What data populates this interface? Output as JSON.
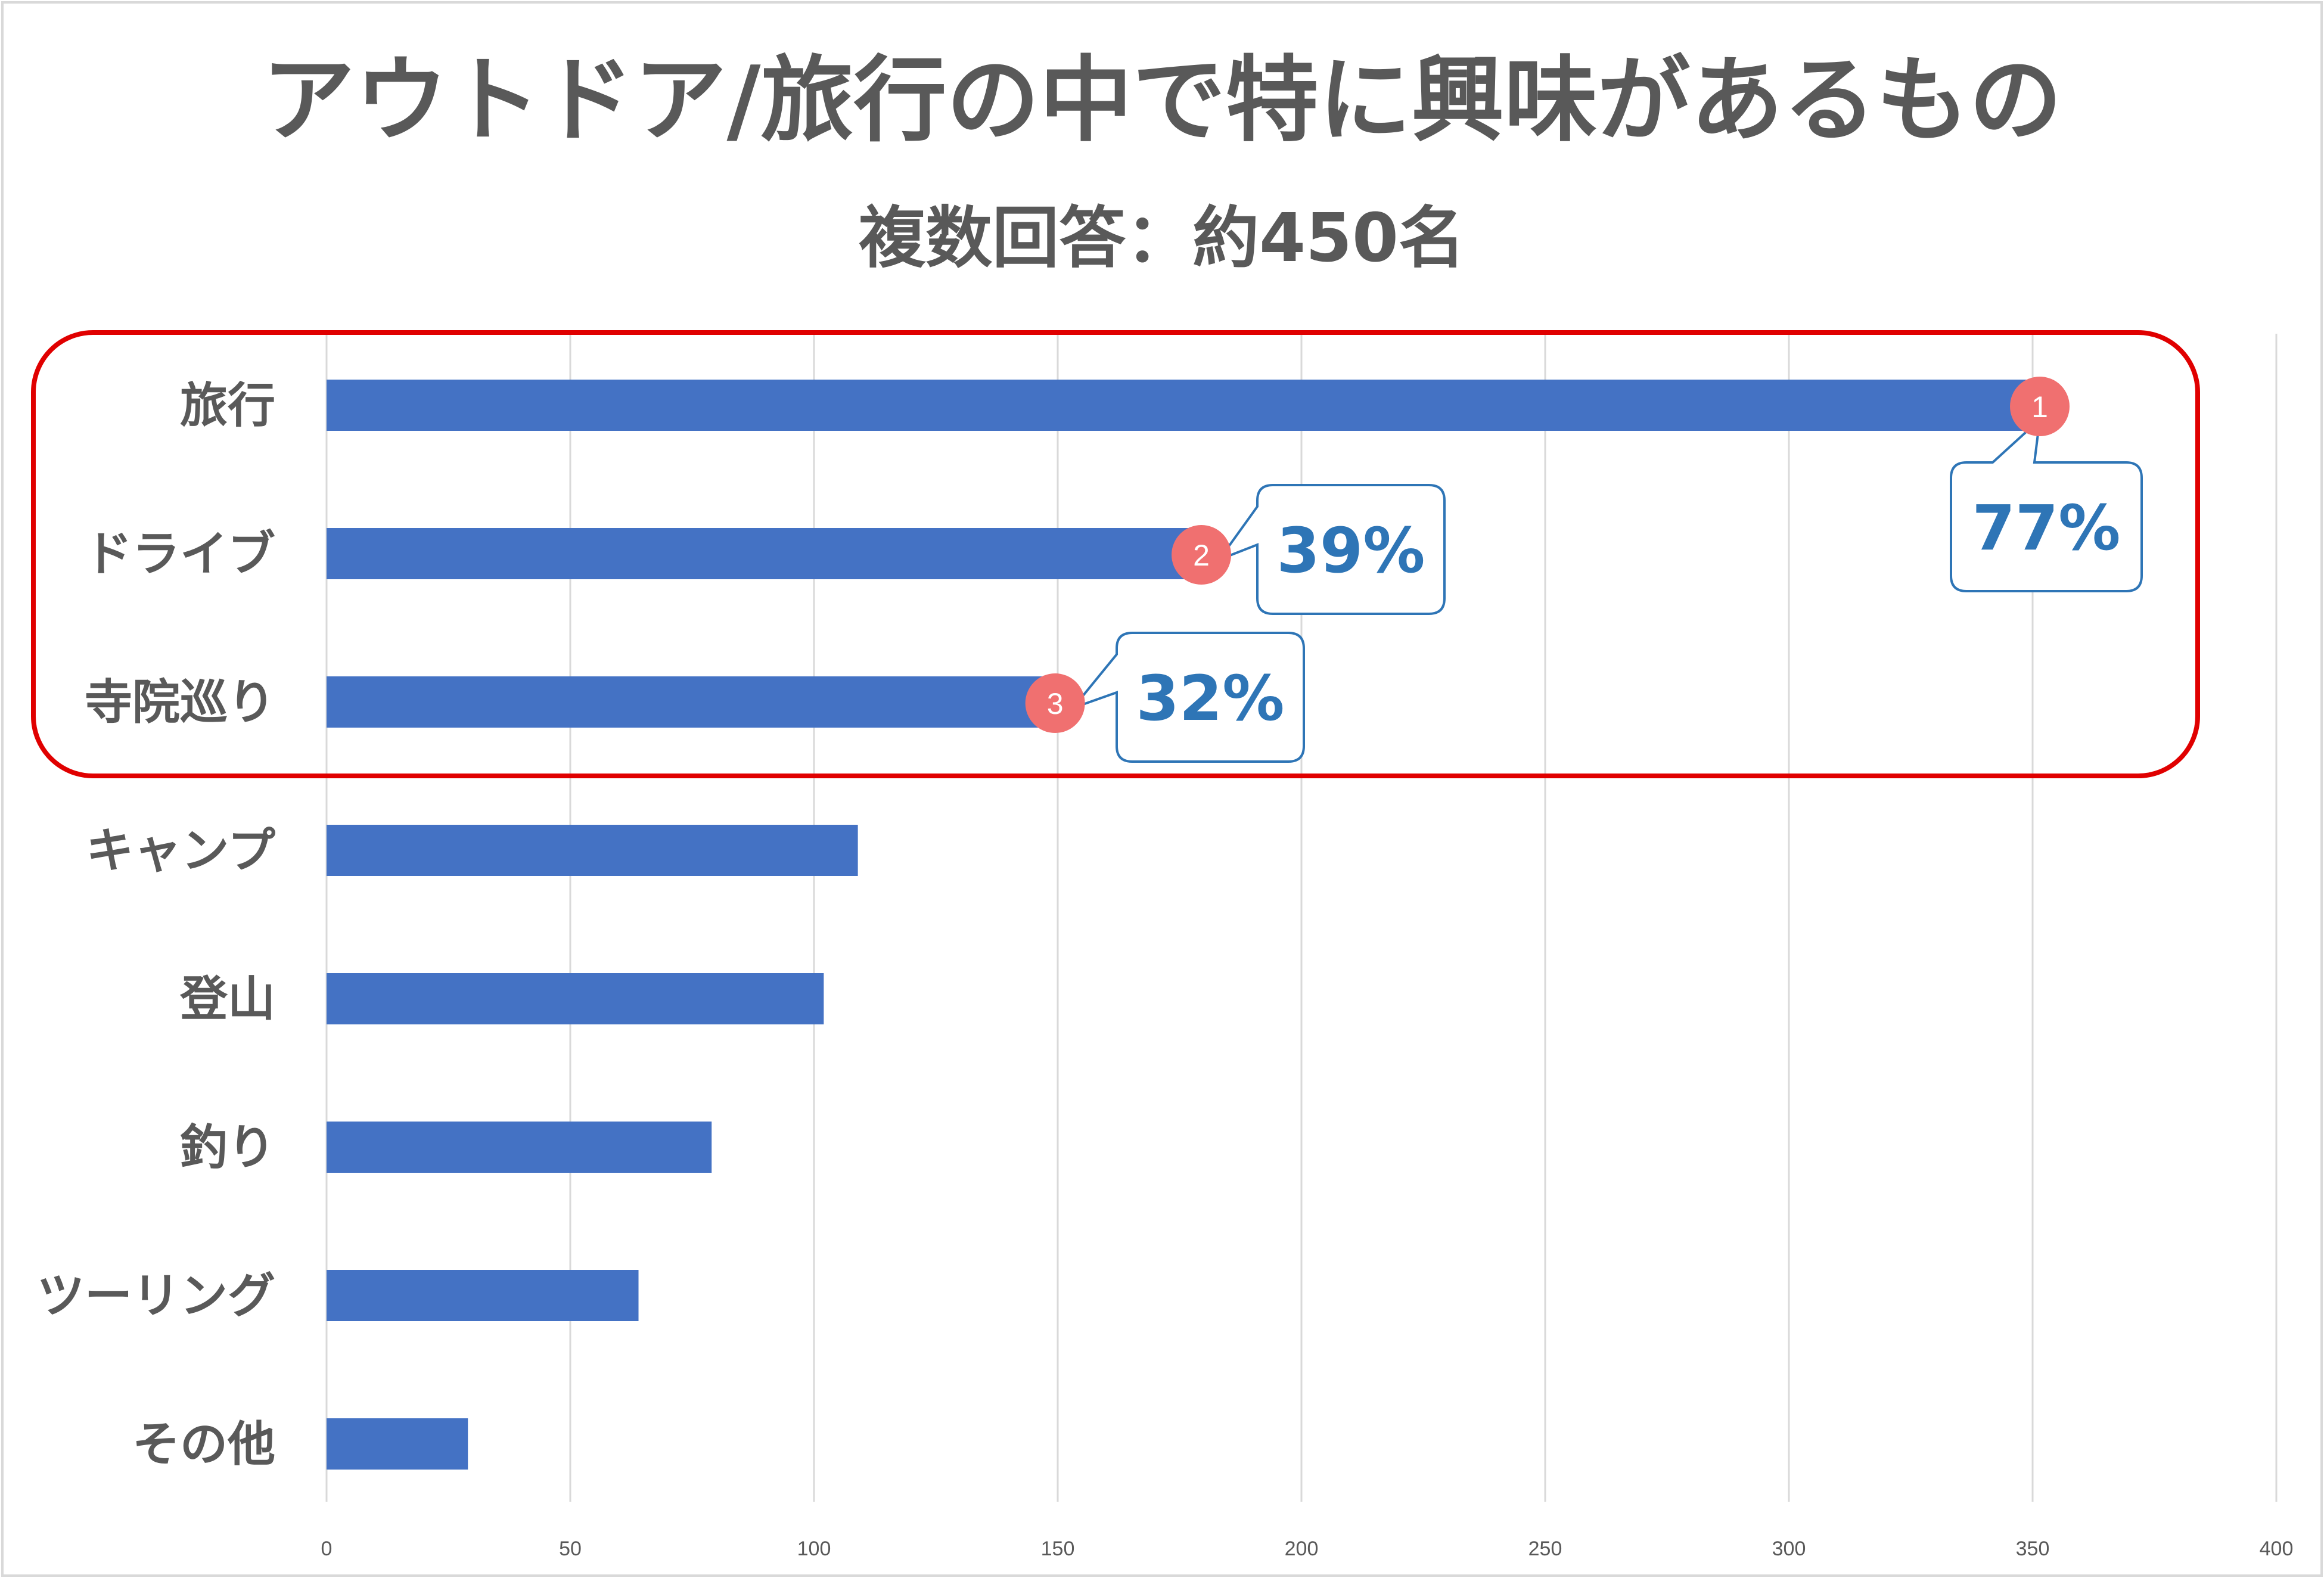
{
  "chart_data": {
    "type": "bar",
    "orientation": "horizontal",
    "title": "アウトドア/旅行の中で特に興味があるもの",
    "subtitle": "複数回答：約450名",
    "categories": [
      "旅行",
      "ドライブ",
      "寺院巡り",
      "キャンプ",
      "登山",
      "釣り",
      "ツーリング",
      "その他"
    ],
    "values": [
      350,
      178,
      148,
      109,
      102,
      79,
      64,
      29
    ],
    "xlim": [
      0,
      400
    ],
    "x_ticks": [
      "0",
      "50",
      "100",
      "150",
      "200",
      "250",
      "300",
      "350",
      "400"
    ],
    "grid": true,
    "bar_color": "#4472c4",
    "highlight": {
      "categories": [
        "旅行",
        "ドライブ",
        "寺院巡り"
      ],
      "border_color": "#e00000"
    },
    "annotations": [
      {
        "category": "旅行",
        "rank": "1",
        "percent": "77%"
      },
      {
        "category": "ドライブ",
        "rank": "2",
        "percent": "39%"
      },
      {
        "category": "寺院巡り",
        "rank": "3",
        "percent": "32%"
      }
    ],
    "rank_color": "#f07070",
    "callout_border_color": "#2e75b6"
  }
}
